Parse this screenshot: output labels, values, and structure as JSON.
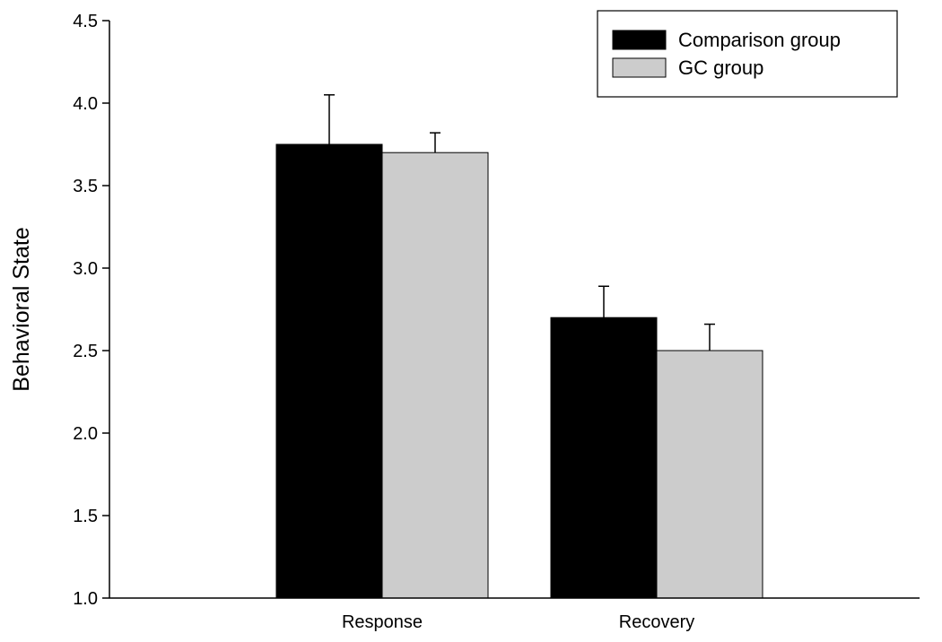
{
  "chart_data": {
    "type": "bar",
    "title": "",
    "xlabel": "",
    "ylabel": "Behavioral State",
    "ylim": [
      1.0,
      4.5
    ],
    "yticks": [
      "1.0",
      "1.5",
      "2.0",
      "2.5",
      "3.0",
      "3.5",
      "4.0",
      "4.5"
    ],
    "categories": [
      "Response",
      "Recovery"
    ],
    "series": [
      {
        "name": "Comparison group",
        "color": "#000000",
        "values": [
          3.75,
          2.7
        ],
        "error": [
          0.3,
          0.19
        ]
      },
      {
        "name": "GC group",
        "color": "#cccccc",
        "values": [
          3.7,
          2.5
        ],
        "error": [
          0.12,
          0.16
        ]
      }
    ],
    "grid": false,
    "legend": "top-right"
  }
}
